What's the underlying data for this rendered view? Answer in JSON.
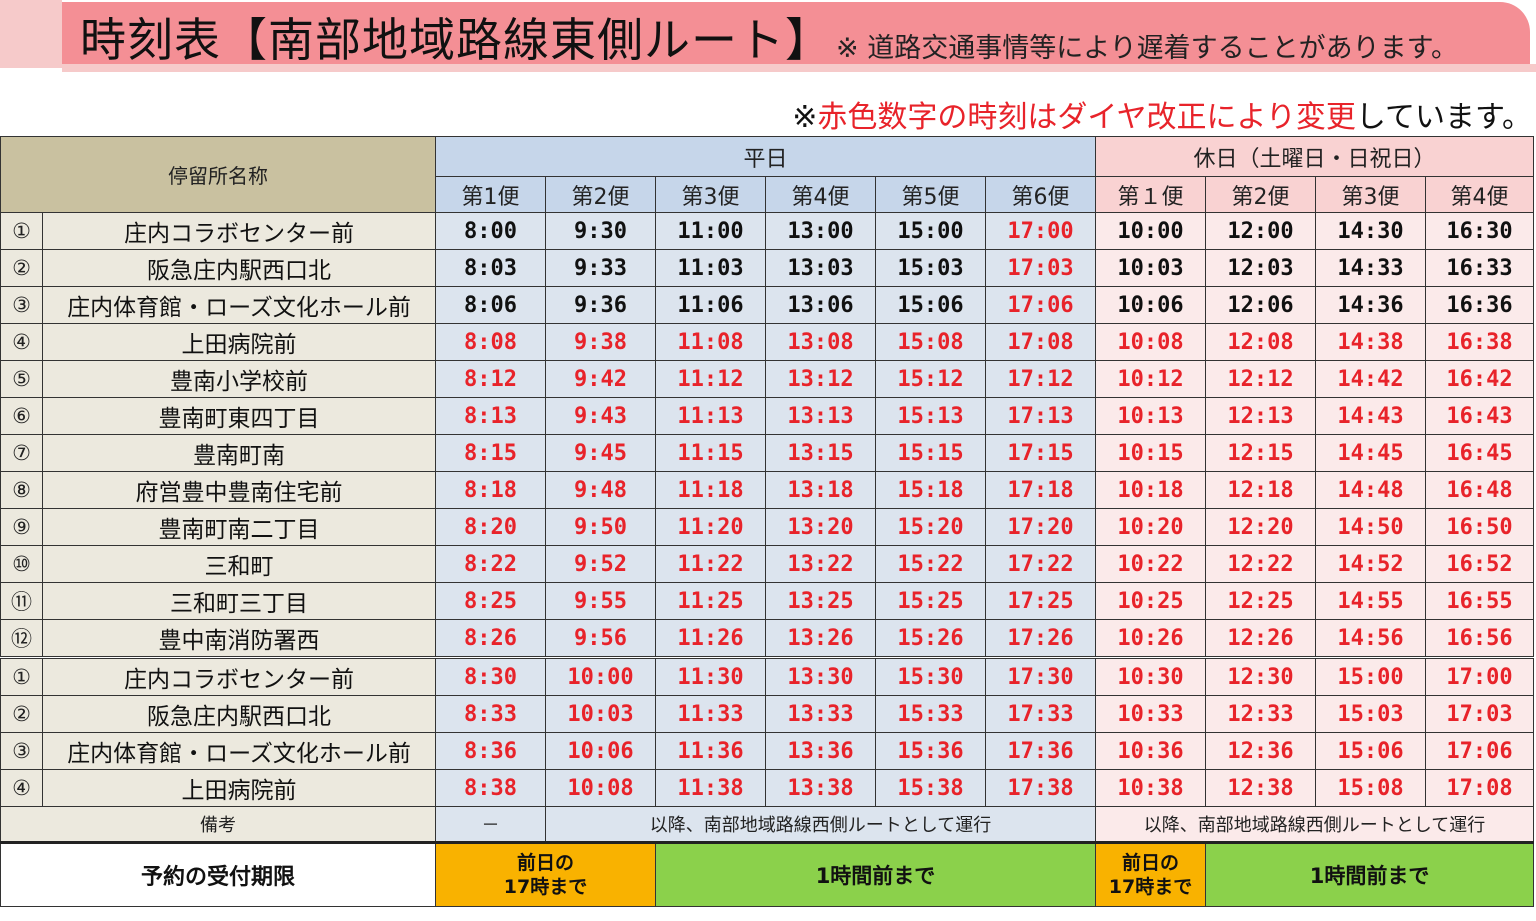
{
  "banner": {
    "title": "時刻表【南部地域路線東側ルート】",
    "note": "※ 道路交通事情等により遅着することがあります。"
  },
  "subnote": {
    "prefix": "※",
    "red": "赤色数字の時刻はダイヤ改正により変更",
    "suffix": "しています。"
  },
  "colors": {
    "banner": "#f48f95",
    "banner_light": "#f6caca",
    "weekday_header": "#c6d6ea",
    "holiday_header": "#f9d2d2",
    "changed_time": "#e8232a",
    "deadline_orange": "#f9b200",
    "deadline_green": "#8bd14b"
  },
  "header": {
    "stop_name": "停留所名称",
    "weekday": "平日",
    "holiday": "休日（土曜日・日祝日）",
    "weekday_trips": [
      "第1便",
      "第2便",
      "第3便",
      "第4便",
      "第5便",
      "第6便"
    ],
    "holiday_trips": [
      "第１便",
      "第2便",
      "第3便",
      "第4便"
    ]
  },
  "rows": [
    {
      "num": "①",
      "stop": "庄内コラボセンター前",
      "weekday": [
        "8:00",
        "9:30",
        "11:00",
        "13:00",
        "15:00",
        "17:00"
      ],
      "holiday": [
        "10:00",
        "12:00",
        "14:30",
        "16:30"
      ],
      "weekday_red": [
        false,
        false,
        false,
        false,
        false,
        true
      ],
      "holiday_red": [
        false,
        false,
        false,
        false
      ]
    },
    {
      "num": "②",
      "stop": "阪急庄内駅西口北",
      "weekday": [
        "8:03",
        "9:33",
        "11:03",
        "13:03",
        "15:03",
        "17:03"
      ],
      "holiday": [
        "10:03",
        "12:03",
        "14:33",
        "16:33"
      ],
      "weekday_red": [
        false,
        false,
        false,
        false,
        false,
        true
      ],
      "holiday_red": [
        false,
        false,
        false,
        false
      ]
    },
    {
      "num": "③",
      "stop": "庄内体育館・ローズ文化ホール前",
      "weekday": [
        "8:06",
        "9:36",
        "11:06",
        "13:06",
        "15:06",
        "17:06"
      ],
      "holiday": [
        "10:06",
        "12:06",
        "14:36",
        "16:36"
      ],
      "weekday_red": [
        false,
        false,
        false,
        false,
        false,
        true
      ],
      "holiday_red": [
        false,
        false,
        false,
        false
      ]
    },
    {
      "num": "④",
      "stop": "上田病院前",
      "weekday": [
        "8:08",
        "9:38",
        "11:08",
        "13:08",
        "15:08",
        "17:08"
      ],
      "holiday": [
        "10:08",
        "12:08",
        "14:38",
        "16:38"
      ],
      "weekday_red": [
        true,
        true,
        true,
        true,
        true,
        true
      ],
      "holiday_red": [
        true,
        true,
        true,
        true
      ]
    },
    {
      "num": "⑤",
      "stop": "豊南小学校前",
      "weekday": [
        "8:12",
        "9:42",
        "11:12",
        "13:12",
        "15:12",
        "17:12"
      ],
      "holiday": [
        "10:12",
        "12:12",
        "14:42",
        "16:42"
      ],
      "weekday_red": [
        true,
        true,
        true,
        true,
        true,
        true
      ],
      "holiday_red": [
        true,
        true,
        true,
        true
      ]
    },
    {
      "num": "⑥",
      "stop": "豊南町東四丁目",
      "weekday": [
        "8:13",
        "9:43",
        "11:13",
        "13:13",
        "15:13",
        "17:13"
      ],
      "holiday": [
        "10:13",
        "12:13",
        "14:43",
        "16:43"
      ],
      "weekday_red": [
        true,
        true,
        true,
        true,
        true,
        true
      ],
      "holiday_red": [
        true,
        true,
        true,
        true
      ]
    },
    {
      "num": "⑦",
      "stop": "豊南町南",
      "weekday": [
        "8:15",
        "9:45",
        "11:15",
        "13:15",
        "15:15",
        "17:15"
      ],
      "holiday": [
        "10:15",
        "12:15",
        "14:45",
        "16:45"
      ],
      "weekday_red": [
        true,
        true,
        true,
        true,
        true,
        true
      ],
      "holiday_red": [
        true,
        true,
        true,
        true
      ]
    },
    {
      "num": "⑧",
      "stop": "府営豊中豊南住宅前",
      "weekday": [
        "8:18",
        "9:48",
        "11:18",
        "13:18",
        "15:18",
        "17:18"
      ],
      "holiday": [
        "10:18",
        "12:18",
        "14:48",
        "16:48"
      ],
      "weekday_red": [
        true,
        true,
        true,
        true,
        true,
        true
      ],
      "holiday_red": [
        true,
        true,
        true,
        true
      ]
    },
    {
      "num": "⑨",
      "stop": "豊南町南二丁目",
      "weekday": [
        "8:20",
        "9:50",
        "11:20",
        "13:20",
        "15:20",
        "17:20"
      ],
      "holiday": [
        "10:20",
        "12:20",
        "14:50",
        "16:50"
      ],
      "weekday_red": [
        true,
        true,
        true,
        true,
        true,
        true
      ],
      "holiday_red": [
        true,
        true,
        true,
        true
      ]
    },
    {
      "num": "⑩",
      "stop": "三和町",
      "weekday": [
        "8:22",
        "9:52",
        "11:22",
        "13:22",
        "15:22",
        "17:22"
      ],
      "holiday": [
        "10:22",
        "12:22",
        "14:52",
        "16:52"
      ],
      "weekday_red": [
        true,
        true,
        true,
        true,
        true,
        true
      ],
      "holiday_red": [
        true,
        true,
        true,
        true
      ]
    },
    {
      "num": "⑪",
      "stop": "三和町三丁目",
      "weekday": [
        "8:25",
        "9:55",
        "11:25",
        "13:25",
        "15:25",
        "17:25"
      ],
      "holiday": [
        "10:25",
        "12:25",
        "14:55",
        "16:55"
      ],
      "weekday_red": [
        true,
        true,
        true,
        true,
        true,
        true
      ],
      "holiday_red": [
        true,
        true,
        true,
        true
      ]
    },
    {
      "num": "⑫",
      "stop": "豊中南消防署西",
      "weekday": [
        "8:26",
        "9:56",
        "11:26",
        "13:26",
        "15:26",
        "17:26"
      ],
      "holiday": [
        "10:26",
        "12:26",
        "14:56",
        "16:56"
      ],
      "weekday_red": [
        true,
        true,
        true,
        true,
        true,
        true
      ],
      "holiday_red": [
        true,
        true,
        true,
        true
      ]
    },
    {
      "num": "①",
      "stop": "庄内コラボセンター前",
      "weekday": [
        "8:30",
        "10:00",
        "11:30",
        "13:30",
        "15:30",
        "17:30"
      ],
      "holiday": [
        "10:30",
        "12:30",
        "15:00",
        "17:00"
      ],
      "weekday_red": [
        true,
        true,
        true,
        true,
        true,
        true
      ],
      "holiday_red": [
        true,
        true,
        true,
        true
      ],
      "separator": true
    },
    {
      "num": "②",
      "stop": "阪急庄内駅西口北",
      "weekday": [
        "8:33",
        "10:03",
        "11:33",
        "13:33",
        "15:33",
        "17:33"
      ],
      "holiday": [
        "10:33",
        "12:33",
        "15:03",
        "17:03"
      ],
      "weekday_red": [
        true,
        true,
        true,
        true,
        true,
        true
      ],
      "holiday_red": [
        true,
        true,
        true,
        true
      ]
    },
    {
      "num": "③",
      "stop": "庄内体育館・ローズ文化ホール前",
      "weekday": [
        "8:36",
        "10:06",
        "11:36",
        "13:36",
        "15:36",
        "17:36"
      ],
      "holiday": [
        "10:36",
        "12:36",
        "15:06",
        "17:06"
      ],
      "weekday_red": [
        true,
        true,
        true,
        true,
        true,
        true
      ],
      "holiday_red": [
        true,
        true,
        true,
        true
      ]
    },
    {
      "num": "④",
      "stop": "上田病院前",
      "weekday": [
        "8:38",
        "10:08",
        "11:38",
        "13:38",
        "15:38",
        "17:38"
      ],
      "holiday": [
        "10:38",
        "12:38",
        "15:08",
        "17:08"
      ],
      "weekday_red": [
        true,
        true,
        true,
        true,
        true,
        true
      ],
      "holiday_red": [
        true,
        true,
        true,
        true
      ]
    }
  ],
  "remarks": {
    "label": "備考",
    "weekday_first": "－",
    "weekday_rest": "以降、南部地域路線西側ルートとして運行",
    "holiday": "以降、南部地域路線西側ルートとして運行"
  },
  "deadline": {
    "label": "予約の受付期限",
    "weekday_first": "前日の\n17時まで",
    "weekday_rest": "1時間前まで",
    "holiday_first": "前日の\n17時まで",
    "holiday_rest": "1時間前まで"
  }
}
